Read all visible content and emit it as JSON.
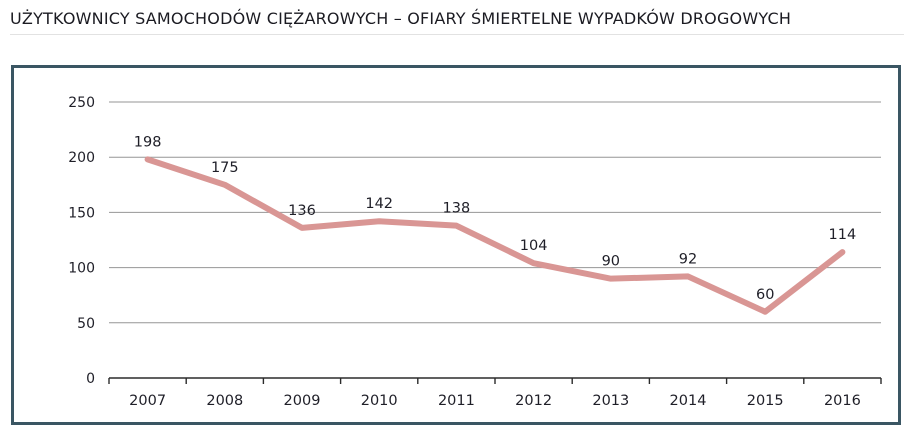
{
  "title": "UŻYTKOWNICY SAMOCHODÓW CIĘŻAROWYCH – OFIARY ŚMIERTELNE WYPADKÓW DROGOWYCH",
  "chart_data": {
    "type": "line",
    "title": "UŻYTKOWNICY SAMOCHODÓW CIĘŻAROWYCH – OFIARY ŚMIERTELNE WYPADKÓW DROGOWYCH",
    "categories": [
      "2007",
      "2008",
      "2009",
      "2010",
      "2011",
      "2012",
      "2013",
      "2014",
      "2015",
      "2016"
    ],
    "values": [
      198,
      175,
      136,
      142,
      138,
      104,
      90,
      92,
      60,
      114
    ],
    "data_labels": [
      "198",
      "175",
      "136",
      "142",
      "138",
      "104",
      "90",
      "92",
      "60",
      "114"
    ],
    "xlabel": "",
    "ylabel": "",
    "ylim": [
      0,
      250
    ],
    "ytick_interval": 50,
    "ytick_labels": [
      "0",
      "50",
      "100",
      "150",
      "200",
      "250"
    ],
    "grid": true,
    "legend": false
  },
  "colors": {
    "line": "#d99694",
    "gridline": "#969696",
    "axis": "#2b2b2b",
    "text": "#1f1f28",
    "title_text": "#1b1b22",
    "chart_border": "#3a5663",
    "background": "#ffffff"
  }
}
